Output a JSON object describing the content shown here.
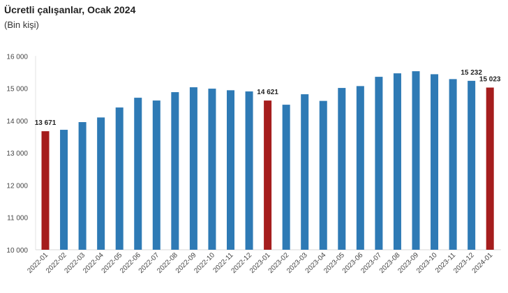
{
  "chart_data": {
    "type": "bar",
    "title": "Ücretli çalışanlar, Ocak 2024",
    "subtitle": "(Bin kişi)",
    "xlabel": "",
    "ylabel": "",
    "ylim": [
      10000,
      16000
    ],
    "yticks": [
      10000,
      11000,
      12000,
      13000,
      14000,
      15000,
      16000
    ],
    "ytick_labels": [
      "10 000",
      "11 000",
      "12 000",
      "13 000",
      "14 000",
      "15 000",
      "16 000"
    ],
    "grid": false,
    "categories": [
      "2022-01",
      "2022-02",
      "2022-03",
      "2022-04",
      "2022-05",
      "2022-06",
      "2022-07",
      "2022-08",
      "2022-09",
      "2022-10",
      "2022-11",
      "2022-12",
      "2023-01",
      "2023-02",
      "2023-03",
      "2023-04",
      "2023-05",
      "2023-06",
      "2023-07",
      "2023-08",
      "2023-09",
      "2023-10",
      "2023-11",
      "2023-12",
      "2024-01"
    ],
    "values": [
      13671,
      13715,
      13953,
      14097,
      14406,
      14708,
      14622,
      14881,
      15032,
      14989,
      14940,
      14903,
      14621,
      14492,
      14816,
      14610,
      15011,
      15069,
      15356,
      15464,
      15529,
      15436,
      15285,
      15232,
      15023
    ],
    "highlighted": [
      "2022-01",
      "2023-01",
      "2024-01"
    ],
    "data_labels": {
      "2022-01": "13 671",
      "2023-01": "14 621",
      "2023-12": "15 232",
      "2024-01": "15 023"
    },
    "colors": {
      "bar": "#2e7ab5",
      "highlight": "#a51d1d"
    }
  }
}
